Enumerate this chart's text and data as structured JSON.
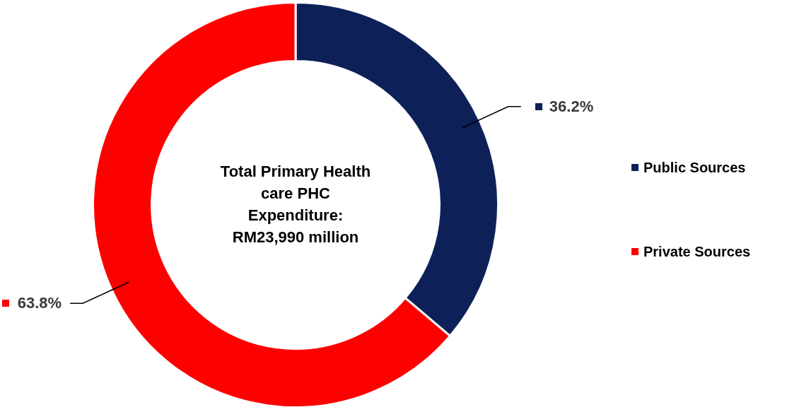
{
  "chart_data": {
    "type": "donut",
    "title": "Total Primary Health care PHC Expenditure: RM23,990 million",
    "categories": [
      "Public Sources",
      "Private Sources"
    ],
    "values": [
      36.2,
      63.8
    ],
    "value_labels": [
      "36.2%",
      "63.8%"
    ],
    "colors": [
      "#0d2158",
      "#fd0000"
    ],
    "legend": "right"
  }
}
